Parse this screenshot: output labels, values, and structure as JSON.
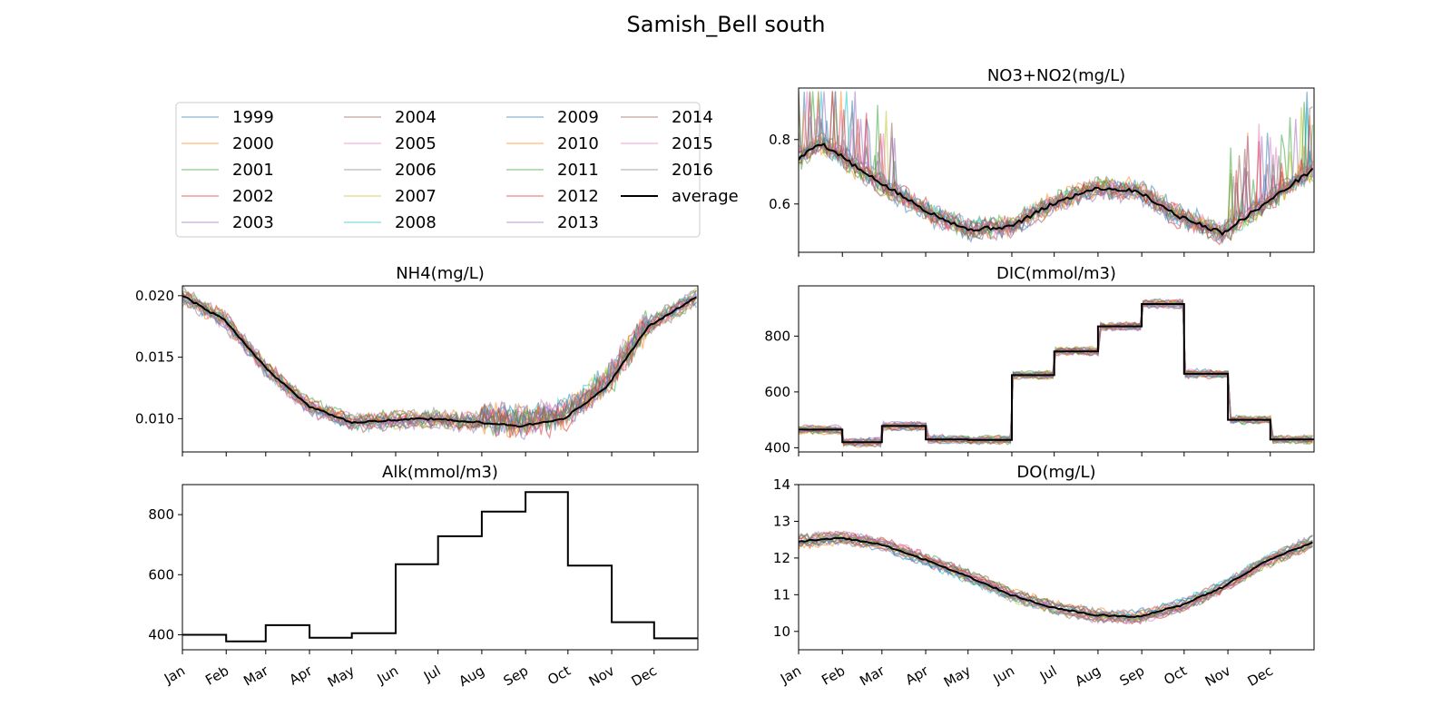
{
  "figure": {
    "title": "Samish_Bell south"
  },
  "legend": {
    "placement": "upper-left panel",
    "entries": [
      "1999",
      "2000",
      "2001",
      "2002",
      "2003",
      "2004",
      "2005",
      "2006",
      "2007",
      "2008",
      "2009",
      "2010",
      "2011",
      "2012",
      "2013",
      "2014",
      "2015",
      "2016",
      "average"
    ],
    "colors": [
      "#1f77b4",
      "#ff7f0e",
      "#2ca02c",
      "#d62728",
      "#9467bd",
      "#8c564b",
      "#e377c2",
      "#7f7f7f",
      "#bcbd22",
      "#17becf",
      "#1f77b4",
      "#ff7f0e",
      "#2ca02c",
      "#d62728",
      "#9467bd",
      "#8c564b",
      "#e377c2",
      "#7f7f7f",
      "#000000"
    ]
  },
  "chart_data": [
    {
      "id": "no3",
      "type": "line",
      "title": "NO3+NO2(mg/L)",
      "ylim": [
        0.45,
        0.96
      ],
      "yticks": [
        "0.6",
        "0.8"
      ],
      "ytick_values": [
        0.6,
        0.8
      ],
      "x_tick_labels": [],
      "average": {
        "name": "average",
        "x": [
          0,
          15,
          30,
          45,
          60,
          90,
          120,
          150,
          180,
          210,
          240,
          270,
          300,
          330,
          365
        ],
        "y": [
          0.74,
          0.79,
          0.75,
          0.7,
          0.66,
          0.58,
          0.52,
          0.53,
          0.6,
          0.65,
          0.64,
          0.56,
          0.51,
          0.6,
          0.71
        ]
      },
      "yearly_noise": 0.05,
      "clip_max": 0.95
    },
    {
      "id": "nh4",
      "type": "line",
      "title": "NH4(mg/L)",
      "ylim": [
        0.0073,
        0.0208
      ],
      "yticks": [
        "0.010",
        "0.015",
        "0.020"
      ],
      "ytick_values": [
        0.01,
        0.015,
        0.02
      ],
      "x_tick_labels": [],
      "average": {
        "name": "average",
        "x": [
          0,
          30,
          60,
          90,
          120,
          150,
          180,
          210,
          240,
          270,
          300,
          330,
          365
        ],
        "y": [
          0.02,
          0.018,
          0.014,
          0.011,
          0.0097,
          0.0099,
          0.01,
          0.0097,
          0.0094,
          0.01,
          0.0125,
          0.0175,
          0.02
        ]
      },
      "yearly_noise": 0.0009
    },
    {
      "id": "dic",
      "type": "line",
      "title": "DIC(mmol/m3)",
      "ylim": [
        385,
        980
      ],
      "yticks": [
        "400",
        "600",
        "800"
      ],
      "ytick_values": [
        400,
        600,
        800
      ],
      "x_tick_labels": [],
      "average": {
        "name": "average",
        "x": [
          0,
          31,
          31,
          59,
          59,
          90,
          90,
          120,
          120,
          151,
          151,
          181,
          181,
          212,
          212,
          243,
          243,
          273,
          273,
          304,
          304,
          334,
          334,
          365
        ],
        "y": [
          465,
          465,
          420,
          420,
          478,
          478,
          430,
          430,
          428,
          428,
          660,
          660,
          745,
          745,
          835,
          835,
          915,
          915,
          665,
          665,
          500,
          500,
          430,
          430
        ]
      },
      "yearly_noise": 15
    },
    {
      "id": "alk",
      "type": "line",
      "title": "Alk(mmol/m3)",
      "ylim": [
        350,
        900
      ],
      "yticks": [
        "400",
        "600",
        "800"
      ],
      "ytick_values": [
        400,
        600,
        800
      ],
      "x_tick_labels": [
        "Jan",
        "Feb",
        "Mar",
        "Apr",
        "May",
        "Jun",
        "Jul",
        "Aug",
        "Sep",
        "Oct",
        "Nov",
        "Dec"
      ],
      "average": {
        "name": "average",
        "x": [
          0,
          31,
          31,
          59,
          59,
          90,
          90,
          120,
          120,
          151,
          151,
          181,
          181,
          212,
          212,
          243,
          243,
          273,
          273,
          304,
          304,
          334,
          334,
          365
        ],
        "y": [
          400,
          400,
          378,
          378,
          432,
          432,
          390,
          390,
          405,
          405,
          635,
          635,
          728,
          728,
          810,
          810,
          875,
          875,
          630,
          630,
          442,
          442,
          388,
          388
        ]
      },
      "yearly_noise": 0
    },
    {
      "id": "do",
      "type": "line",
      "title": "DO(mg/L)",
      "ylim": [
        9.5,
        14.0
      ],
      "yticks": [
        "10",
        "11",
        "12",
        "13",
        "14"
      ],
      "ytick_values": [
        10,
        11,
        12,
        13,
        14
      ],
      "x_tick_labels": [
        "Jan",
        "Feb",
        "Mar",
        "Apr",
        "May",
        "Jun",
        "Jul",
        "Aug",
        "Sep",
        "Oct",
        "Nov",
        "Dec"
      ],
      "average": {
        "name": "average",
        "x": [
          0,
          30,
          60,
          90,
          120,
          150,
          180,
          210,
          240,
          270,
          300,
          330,
          365
        ],
        "y": [
          12.45,
          12.55,
          12.35,
          11.95,
          11.5,
          11.0,
          10.65,
          10.45,
          10.4,
          10.7,
          11.2,
          11.9,
          12.45
        ]
      },
      "yearly_noise": 0.18
    }
  ],
  "x_axis": {
    "domain": [
      0,
      365
    ],
    "month_starts": [
      0,
      31,
      59,
      90,
      120,
      151,
      181,
      212,
      243,
      273,
      304,
      334
    ]
  }
}
